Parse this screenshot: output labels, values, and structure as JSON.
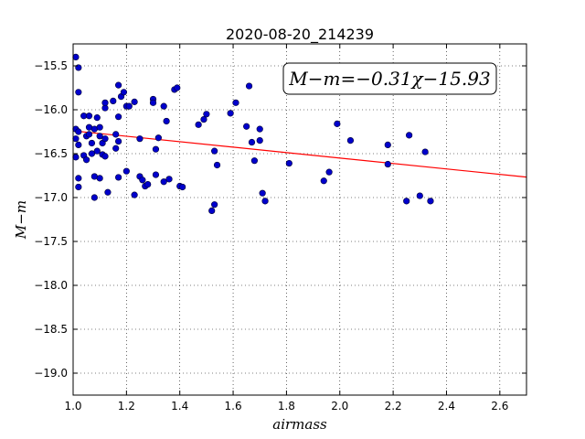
{
  "chart_data": {
    "type": "scatter",
    "title": "2020-08-20_214239",
    "xlabel": "airmass",
    "ylabel": "M−m",
    "xlim": [
      1.0,
      2.7
    ],
    "ylim": [
      -15.25,
      -19.25
    ],
    "y_inverted": true,
    "grid": true,
    "x_ticks": [
      "1.0",
      "1.2",
      "1.4",
      "1.6",
      "1.8",
      "2.0",
      "2.2",
      "2.4",
      "2.6"
    ],
    "y_ticks": [
      "−15.5",
      "−16.0",
      "−16.5",
      "−17.0",
      "−17.5",
      "−18.0",
      "−18.5",
      "−19.0"
    ],
    "annotation": "M−m=−0.31χ−15.93",
    "fit_line": {
      "slope": -0.31,
      "intercept": -15.93,
      "color": "#ff0000"
    },
    "marker_color": "#0000cc",
    "points": [
      [
        1.01,
        -15.4
      ],
      [
        1.02,
        -15.52
      ],
      [
        1.02,
        -15.8
      ],
      [
        1.01,
        -16.22
      ],
      [
        1.02,
        -16.25
      ],
      [
        1.01,
        -16.33
      ],
      [
        1.02,
        -16.4
      ],
      [
        1.01,
        -16.54
      ],
      [
        1.02,
        -16.78
      ],
      [
        1.02,
        -16.88
      ],
      [
        1.04,
        -16.07
      ],
      [
        1.05,
        -16.3
      ],
      [
        1.04,
        -16.52
      ],
      [
        1.05,
        -16.57
      ],
      [
        1.06,
        -16.07
      ],
      [
        1.06,
        -16.2
      ],
      [
        1.06,
        -16.28
      ],
      [
        1.07,
        -16.38
      ],
      [
        1.07,
        -16.5
      ],
      [
        1.08,
        -16.22
      ],
      [
        1.08,
        -16.76
      ],
      [
        1.08,
        -17.0
      ],
      [
        1.09,
        -16.09
      ],
      [
        1.09,
        -16.47
      ],
      [
        1.1,
        -16.3
      ],
      [
        1.1,
        -16.2
      ],
      [
        1.1,
        -16.78
      ],
      [
        1.11,
        -16.38
      ],
      [
        1.11,
        -16.51
      ],
      [
        1.12,
        -15.98
      ],
      [
        1.12,
        -16.53
      ],
      [
        1.12,
        -16.33
      ],
      [
        1.12,
        -15.92
      ],
      [
        1.13,
        -16.94
      ],
      [
        1.15,
        -15.9
      ],
      [
        1.16,
        -16.28
      ],
      [
        1.16,
        -16.44
      ],
      [
        1.17,
        -15.72
      ],
      [
        1.17,
        -16.08
      ],
      [
        1.17,
        -16.36
      ],
      [
        1.17,
        -16.77
      ],
      [
        1.18,
        -15.85
      ],
      [
        1.19,
        -15.8
      ],
      [
        1.2,
        -15.96
      ],
      [
        1.2,
        -16.7
      ],
      [
        1.21,
        -15.96
      ],
      [
        1.23,
        -15.91
      ],
      [
        1.23,
        -16.97
      ],
      [
        1.25,
        -16.33
      ],
      [
        1.25,
        -16.76
      ],
      [
        1.26,
        -16.8
      ],
      [
        1.27,
        -16.87
      ],
      [
        1.28,
        -16.85
      ],
      [
        1.3,
        -15.88
      ],
      [
        1.3,
        -15.92
      ],
      [
        1.31,
        -16.45
      ],
      [
        1.31,
        -16.74
      ],
      [
        1.32,
        -16.32
      ],
      [
        1.34,
        -15.96
      ],
      [
        1.34,
        -16.82
      ],
      [
        1.35,
        -16.13
      ],
      [
        1.36,
        -16.79
      ],
      [
        1.38,
        -15.77
      ],
      [
        1.39,
        -15.75
      ],
      [
        1.4,
        -16.87
      ],
      [
        1.41,
        -16.88
      ],
      [
        1.47,
        -16.17
      ],
      [
        1.49,
        -16.11
      ],
      [
        1.5,
        -16.05
      ],
      [
        1.52,
        -17.15
      ],
      [
        1.53,
        -16.47
      ],
      [
        1.53,
        -17.08
      ],
      [
        1.54,
        -16.63
      ],
      [
        1.59,
        -16.04
      ],
      [
        1.61,
        -15.92
      ],
      [
        1.65,
        -16.19
      ],
      [
        1.66,
        -15.73
      ],
      [
        1.67,
        -16.37
      ],
      [
        1.68,
        -16.58
      ],
      [
        1.7,
        -16.22
      ],
      [
        1.7,
        -16.35
      ],
      [
        1.71,
        -16.95
      ],
      [
        1.72,
        -17.04
      ],
      [
        1.81,
        -16.61
      ],
      [
        1.94,
        -16.81
      ],
      [
        1.96,
        -16.71
      ],
      [
        1.99,
        -16.16
      ],
      [
        2.04,
        -16.35
      ],
      [
        2.18,
        -16.4
      ],
      [
        2.18,
        -16.62
      ],
      [
        2.25,
        -17.04
      ],
      [
        2.26,
        -16.29
      ],
      [
        2.3,
        -16.98
      ],
      [
        2.32,
        -16.48
      ],
      [
        2.34,
        -17.04
      ]
    ]
  }
}
